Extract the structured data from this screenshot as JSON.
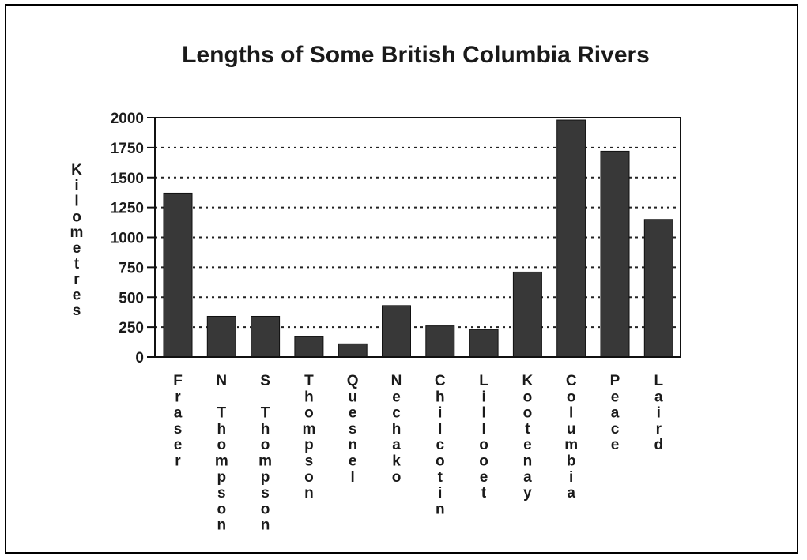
{
  "chart_data": {
    "type": "bar",
    "title": "Lengths of Some British Columbia Rivers",
    "xlabel": "",
    "ylabel": "Kilometres",
    "ylim": [
      0,
      2000
    ],
    "yticks": [
      "0",
      "250",
      "500",
      "750",
      "1000",
      "1250",
      "1500",
      "1750",
      "2000"
    ],
    "grid": true,
    "categories": [
      "Fraser",
      "N Thompson",
      "S Thompson",
      "Thompson",
      "Quesnel",
      "Nechako",
      "Chilcotin",
      "Lillooet",
      "Kootenay",
      "Columbia",
      "Peace",
      "Laird"
    ],
    "values": [
      1370,
      340,
      340,
      170,
      110,
      430,
      260,
      230,
      710,
      1980,
      1720,
      1150
    ],
    "bar_color": "#383838"
  }
}
